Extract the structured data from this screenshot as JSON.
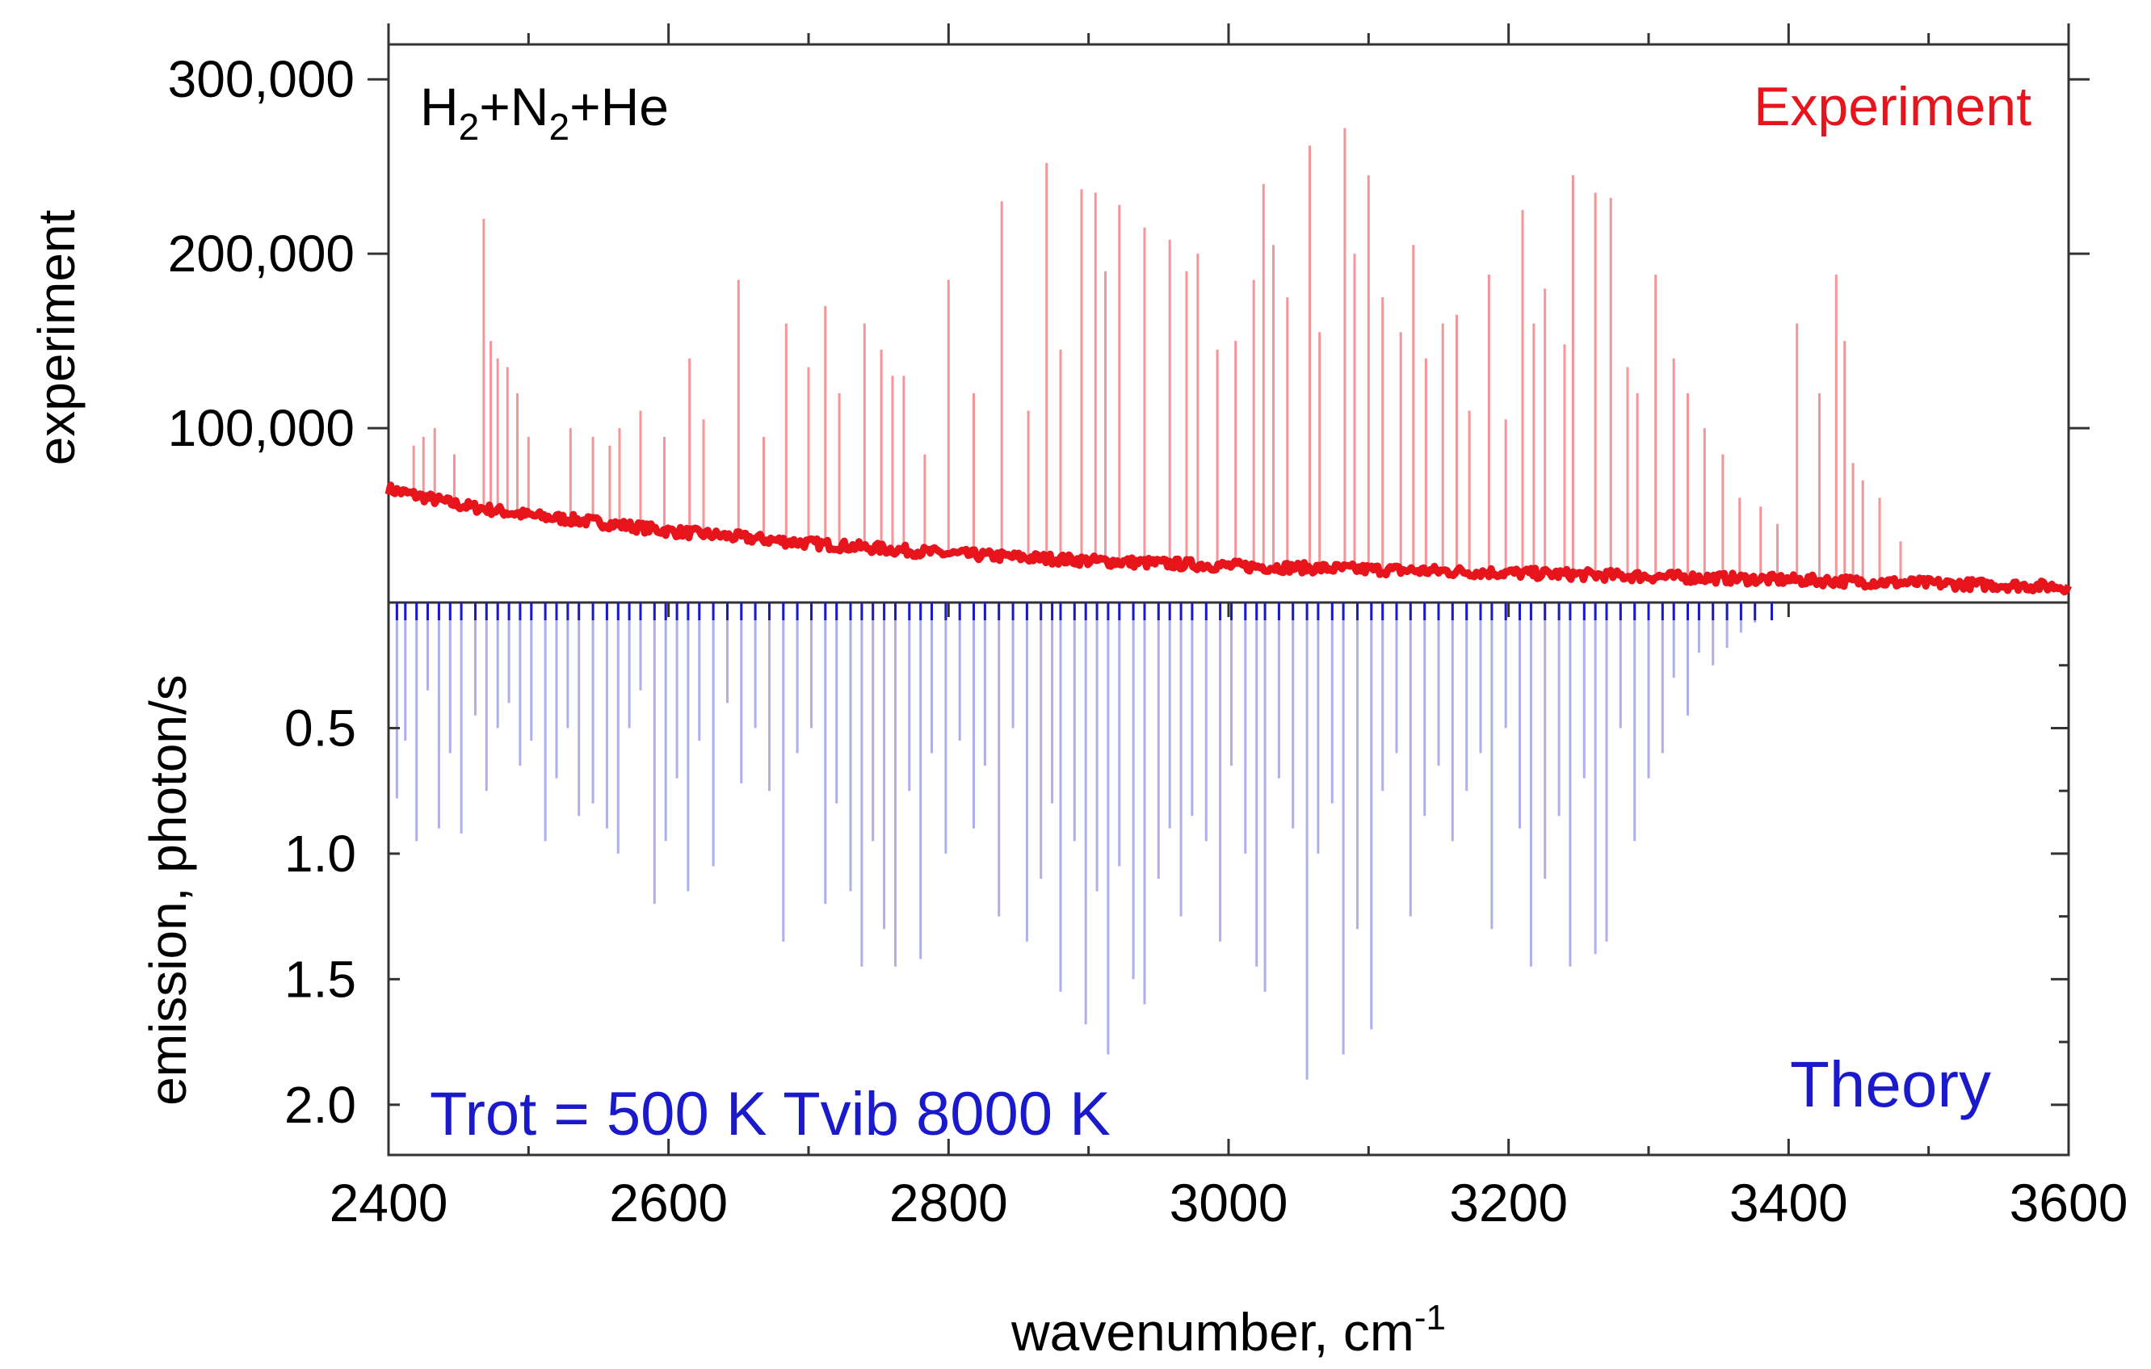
{
  "chart_data": {
    "type": "line",
    "title": "",
    "xlabel": "wavenumber, cm",
    "xlabel_superscript": "-1",
    "xlim": [
      2400,
      3600
    ],
    "x_ticks": [
      "2400",
      "2600",
      "2800",
      "3000",
      "3200",
      "3400",
      "3600"
    ],
    "x_tick_values": [
      2400,
      2600,
      2800,
      3000,
      3200,
      3400,
      3600
    ],
    "panels": [
      {
        "name": "experiment",
        "ylabel": "experiment",
        "ylim": [
          0,
          320000
        ],
        "y_ticks": [
          "100,000",
          "200,000",
          "300,000"
        ],
        "y_tick_values": [
          100000,
          200000,
          300000
        ],
        "color": "#e8141b",
        "series_label": "Experiment",
        "sample_label": {
          "parts": [
            "H",
            "2",
            "+N",
            "2",
            "+He"
          ],
          "text": "H2+N2+He"
        },
        "baseline": {
          "x": [
            2400,
            2450,
            2500,
            2550,
            2600,
            2700,
            2800,
            2900,
            3000,
            3100,
            3200,
            3300,
            3400,
            3500,
            3600
          ],
          "y": [
            65000,
            56000,
            50000,
            46000,
            41000,
            34000,
            28000,
            24000,
            21000,
            19000,
            17000,
            15000,
            13000,
            11000,
            9000
          ]
        },
        "peaks": {
          "x": [
            2418,
            2425,
            2433,
            2447,
            2468,
            2473,
            2478,
            2485,
            2492,
            2500,
            2530,
            2546,
            2558,
            2565,
            2580,
            2597,
            2615,
            2625,
            2650,
            2668,
            2684,
            2700,
            2712,
            2722,
            2740,
            2752,
            2760,
            2768,
            2783,
            2800,
            2818,
            2838,
            2857,
            2870,
            2880,
            2895,
            2905,
            2912,
            2922,
            2940,
            2958,
            2970,
            2978,
            2992,
            3005,
            3018,
            3025,
            3032,
            3042,
            3058,
            3065,
            3083,
            3090,
            3100,
            3110,
            3123,
            3132,
            3141,
            3153,
            3163,
            3172,
            3186,
            3198,
            3210,
            3218,
            3226,
            3240,
            3246,
            3262,
            3273,
            3285,
            3292,
            3305,
            3318,
            3328,
            3340,
            3353,
            3365,
            3380,
            3392,
            3406,
            3422,
            3434,
            3440,
            3446,
            3453,
            3465,
            3480
          ],
          "y": [
            90000,
            95000,
            100000,
            85000,
            220000,
            150000,
            140000,
            135000,
            120000,
            95000,
            100000,
            95000,
            90000,
            100000,
            110000,
            95000,
            140000,
            105000,
            185000,
            95000,
            160000,
            135000,
            170000,
            120000,
            160000,
            145000,
            130000,
            130000,
            85000,
            185000,
            120000,
            230000,
            110000,
            252000,
            145000,
            237000,
            235000,
            190000,
            228000,
            215000,
            208000,
            190000,
            200000,
            145000,
            150000,
            185000,
            240000,
            205000,
            175000,
            262000,
            155000,
            272000,
            200000,
            245000,
            175000,
            155000,
            205000,
            140000,
            160000,
            165000,
            110000,
            188000,
            105000,
            225000,
            160000,
            180000,
            148000,
            245000,
            235000,
            232000,
            135000,
            120000,
            188000,
            140000,
            120000,
            100000,
            85000,
            60000,
            55000,
            45000,
            160000,
            120000,
            188000,
            150000,
            80000,
            70000,
            60000,
            35000
          ]
        }
      },
      {
        "name": "theory",
        "ylabel": "emission, photon/s",
        "ylim": [
          0,
          2.2
        ],
        "y_ticks": [
          "0.5",
          "1.0",
          "1.5",
          "2.0"
        ],
        "y_tick_values": [
          0.5,
          1.0,
          1.5,
          2.0
        ],
        "color": "#1a1acc",
        "series_label": "Theory",
        "annotation": "Trot = 500 K Tvib 8000 K",
        "sticks": {
          "x": [
            2406,
            2412,
            2420,
            2428,
            2436,
            2444,
            2452,
            2462,
            2470,
            2478,
            2486,
            2494,
            2502,
            2512,
            2520,
            2528,
            2536,
            2546,
            2556,
            2564,
            2572,
            2580,
            2590,
            2598,
            2606,
            2614,
            2622,
            2632,
            2642,
            2652,
            2662,
            2672,
            2682,
            2692,
            2702,
            2712,
            2720,
            2730,
            2738,
            2746,
            2754,
            2762,
            2772,
            2780,
            2788,
            2798,
            2808,
            2818,
            2826,
            2836,
            2846,
            2856,
            2866,
            2874,
            2880,
            2890,
            2898,
            2906,
            2914,
            2922,
            2932,
            2940,
            2950,
            2958,
            2966,
            2974,
            2984,
            2994,
            3002,
            3012,
            3020,
            3026,
            3036,
            3046,
            3056,
            3064,
            3074,
            3082,
            3092,
            3102,
            3110,
            3120,
            3130,
            3140,
            3150,
            3160,
            3170,
            3180,
            3188,
            3198,
            3208,
            3216,
            3226,
            3236,
            3244,
            3254,
            3262,
            3270,
            3280,
            3290,
            3300,
            3310,
            3318,
            3328,
            3336,
            3346,
            3356,
            3366,
            3376,
            3388
          ],
          "y": [
            0.78,
            0.55,
            0.95,
            0.35,
            0.9,
            0.6,
            0.92,
            0.45,
            0.75,
            0.5,
            0.4,
            0.65,
            0.55,
            0.95,
            0.7,
            0.5,
            0.85,
            0.8,
            0.9,
            1.0,
            0.5,
            0.35,
            1.2,
            0.95,
            0.7,
            1.15,
            0.55,
            1.05,
            0.4,
            0.72,
            0.5,
            0.75,
            1.35,
            0.6,
            0.5,
            1.2,
            0.8,
            1.15,
            1.45,
            0.95,
            1.3,
            1.45,
            0.75,
            1.42,
            0.6,
            1.0,
            0.55,
            0.9,
            0.65,
            1.25,
            0.5,
            1.35,
            1.1,
            0.8,
            1.55,
            0.95,
            1.68,
            1.15,
            1.8,
            1.05,
            1.5,
            1.6,
            1.1,
            0.9,
            1.25,
            0.85,
            0.95,
            1.35,
            0.65,
            1.0,
            1.45,
            1.55,
            0.7,
            0.9,
            1.9,
            1.0,
            0.8,
            1.8,
            1.3,
            1.7,
            0.75,
            0.6,
            1.25,
            0.85,
            0.65,
            0.95,
            0.75,
            0.6,
            1.3,
            0.5,
            0.9,
            1.45,
            1.1,
            0.85,
            1.45,
            0.7,
            1.4,
            1.35,
            0.5,
            0.95,
            0.7,
            0.6,
            0.3,
            0.45,
            0.2,
            0.25,
            0.18,
            0.12,
            0.08,
            0.05
          ]
        }
      }
    ]
  }
}
